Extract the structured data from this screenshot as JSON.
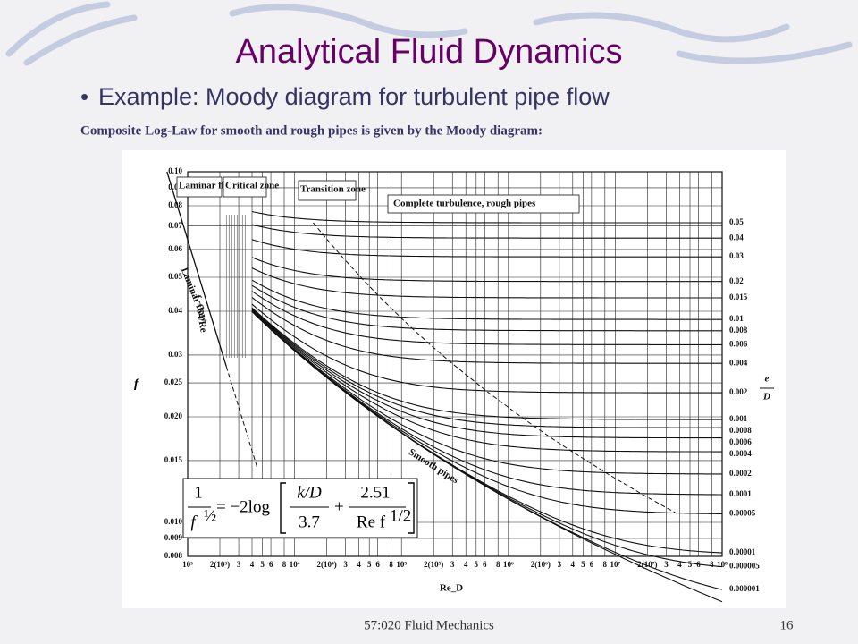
{
  "slide": {
    "title": "Analytical Fluid Dynamics",
    "bullet": "Example: Moody diagram for turbulent pipe flow",
    "caption": "Composite Log-Law for smooth and rough pipes is given by the Moody diagram:",
    "footer_left": "57:020 Fluid Mechanics",
    "footer_right": "16"
  },
  "chart_data": {
    "type": "moody",
    "y_label": "f",
    "x_label": "Re_D",
    "roughness_label": {
      "num": "e",
      "den": "D"
    },
    "log_scale": true,
    "grid": true,
    "xlim": [
      1000,
      100000000
    ],
    "ylim": [
      0.008,
      0.1
    ],
    "yticks": [
      {
        "value": 0.1,
        "label": "0.10"
      },
      0.09,
      0.08,
      0.07,
      0.06,
      0.05,
      0.04,
      0.03,
      0.025,
      {
        "value": 0.02,
        "label": "0.020"
      },
      0.015,
      {
        "value": 0.01,
        "label": "0.010"
      },
      0.009,
      0.008
    ],
    "xticks": [
      {
        "value": 1000,
        "label": "10³"
      },
      {
        "value": 2000,
        "label": "2(10³)"
      },
      {
        "value": 3000,
        "label": "3"
      },
      {
        "value": 4000,
        "label": "4"
      },
      {
        "value": 5000,
        "label": "5"
      },
      {
        "value": 6000,
        "label": "6"
      },
      {
        "value": 8000,
        "label": "8"
      },
      {
        "value": 10000,
        "label": "10⁴"
      },
      {
        "value": 20000,
        "label": "2(10⁴)"
      },
      {
        "value": 30000,
        "label": "3"
      },
      {
        "value": 40000,
        "label": "4"
      },
      {
        "value": 50000,
        "label": "5"
      },
      {
        "value": 60000,
        "label": "6"
      },
      {
        "value": 80000,
        "label": "8"
      },
      {
        "value": 100000,
        "label": "10⁵"
      },
      {
        "value": 200000,
        "label": "2(10⁵)"
      },
      {
        "value": 300000,
        "label": "3"
      },
      {
        "value": 400000,
        "label": "4"
      },
      {
        "value": 500000,
        "label": "5"
      },
      {
        "value": 600000,
        "label": "6"
      },
      {
        "value": 800000,
        "label": "8"
      },
      {
        "value": 1000000,
        "label": "10⁶"
      },
      {
        "value": 2000000,
        "label": "2(10⁶)"
      },
      {
        "value": 3000000,
        "label": "3"
      },
      {
        "value": 4000000,
        "label": "4"
      },
      {
        "value": 5000000,
        "label": "5"
      },
      {
        "value": 6000000,
        "label": "6"
      },
      {
        "value": 8000000,
        "label": "8"
      },
      {
        "value": 10000000,
        "label": "10⁷"
      },
      {
        "value": 20000000,
        "label": "2(10⁷)"
      },
      {
        "value": 30000000,
        "label": "3"
      },
      {
        "value": 40000000,
        "label": "4"
      },
      {
        "value": 50000000,
        "label": "5"
      },
      {
        "value": 60000000,
        "label": "6"
      },
      {
        "value": 80000000,
        "label": "8"
      },
      {
        "value": 100000000,
        "label": "10⁸"
      }
    ],
    "roughness": [
      0.05,
      0.04,
      0.03,
      0.02,
      0.015,
      0.01,
      0.008,
      0.006,
      0.004,
      0.002,
      0.001,
      0.0008,
      0.0006,
      0.0004,
      0.0002,
      0.0001,
      5e-05,
      1e-05,
      5e-06,
      1e-06
    ],
    "annotations": [
      "Laminar flow",
      "Critical zone",
      "Transition zone",
      "Complete turbulence, rough pipes",
      "Laminar flow",
      "f = 64/Re",
      "Smooth pipes"
    ],
    "formula": {
      "lhs_num": "1",
      "lhs_den": "f",
      "lhs_exp": "½",
      "eq": "= −2log",
      "t1_num": "k/D",
      "t1_den": "3.7",
      "plus": "+",
      "t2_num": "2.51",
      "t2_den": "Re f",
      "t2_exp": "1/2"
    }
  }
}
